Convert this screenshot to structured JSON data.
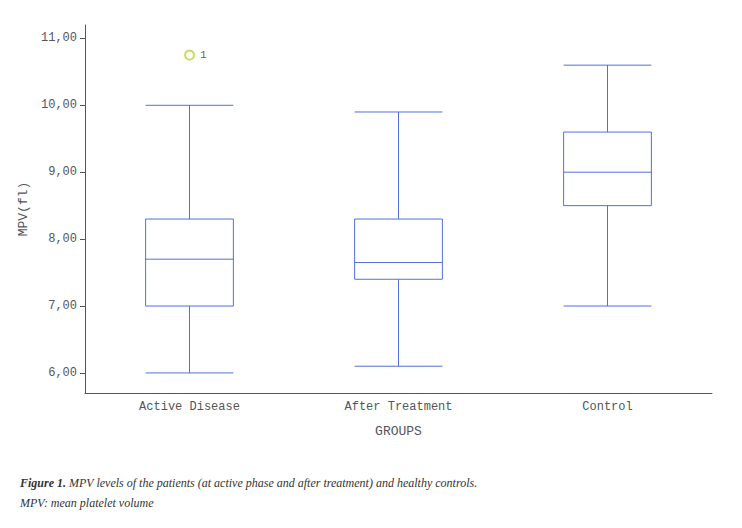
{
  "chart_data": {
    "type": "boxplot",
    "xlabel": "GROUPS",
    "ylabel": "MPV(fl)",
    "categories": [
      "Active Disease",
      "After Treatment",
      "Control"
    ],
    "values": [
      [
        6.0,
        7.0,
        7.7,
        8.3,
        10.0
      ],
      [
        6.1,
        7.4,
        7.65,
        8.3,
        9.9
      ],
      [
        7.0,
        8.5,
        9.0,
        9.6,
        10.6
      ]
    ],
    "outliers": [
      [
        10.75
      ],
      [],
      []
    ],
    "outlier_label": "1",
    "ylim": [
      5.7,
      11.2
    ],
    "yticks": [
      {
        "value": 6.0,
        "label": "6,00"
      },
      {
        "value": 7.0,
        "label": "7,00"
      },
      {
        "value": 8.0,
        "label": "8,00"
      },
      {
        "value": 9.0,
        "label": "9,00"
      },
      {
        "value": 10.0,
        "label": "10,00"
      },
      {
        "value": 11.0,
        "label": "11,00"
      }
    ],
    "grid": false,
    "caption": {
      "bold": "Figure 1.",
      "italic": " MPV levels of the patients (at active phase and after treatment) and healthy controls.",
      "line2": "MPV: mean platelet volume"
    }
  }
}
